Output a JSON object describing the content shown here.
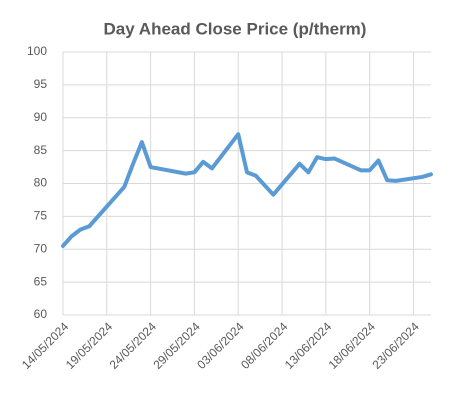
{
  "chart_data": {
    "type": "line",
    "title": "Day Ahead Close Price (p/therm)",
    "x": [
      "14/05/2024",
      "15/05/2024",
      "16/05/2024",
      "17/05/2024",
      "20/05/2024",
      "21/05/2024",
      "22/05/2024",
      "23/05/2024",
      "24/05/2024",
      "28/05/2024",
      "29/05/2024",
      "30/05/2024",
      "31/05/2024",
      "03/06/2024",
      "04/06/2024",
      "05/06/2024",
      "07/06/2024",
      "10/06/2024",
      "11/06/2024",
      "12/06/2024",
      "13/06/2024",
      "14/06/2024",
      "17/06/2024",
      "18/06/2024",
      "19/06/2024",
      "20/06/2024",
      "21/06/2024",
      "24/06/2024",
      "25/06/2024"
    ],
    "values": [
      70.5,
      72,
      73,
      73.5,
      78,
      79.5,
      83,
      86.3,
      82.5,
      81.5,
      81.7,
      83.3,
      82.3,
      87.5,
      81.7,
      81.2,
      78.3,
      83,
      81.7,
      84,
      83.7,
      83.8,
      82,
      82,
      83.5,
      80.5,
      80.4,
      81,
      81.4
    ],
    "color": "#5b9bd5",
    "xlim": [
      "14/05/2024",
      "25/06/2024"
    ],
    "xticks": [
      "14/05/2024",
      "19/05/2024",
      "24/05/2024",
      "29/05/2024",
      "03/06/2024",
      "08/06/2024",
      "13/06/2024",
      "18/06/2024",
      "23/06/2024"
    ],
    "ylim": [
      60,
      100
    ],
    "yticks": [
      60,
      65,
      70,
      75,
      80,
      85,
      90,
      95,
      100
    ],
    "grid": true
  }
}
